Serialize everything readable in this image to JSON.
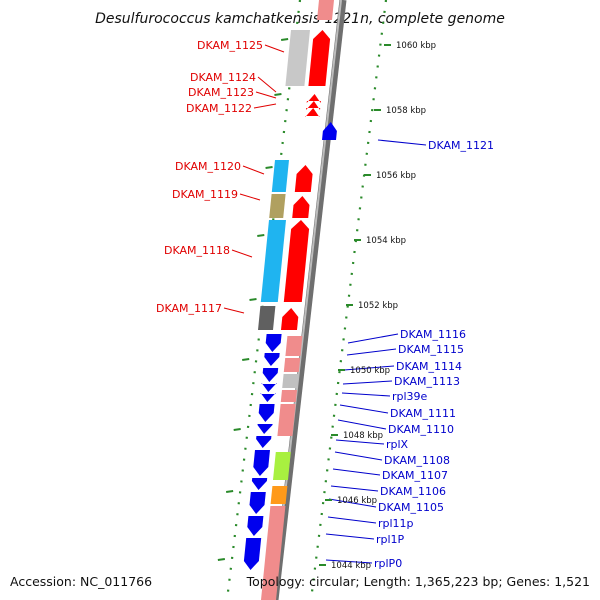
{
  "title": "Desulfurococcus kamchatkensis 1221n, complete genome",
  "footer": {
    "accession": "Accession: NC_011766",
    "summary": "Topology: circular; Length: 1,365,223 bp; Genes: 1,521"
  },
  "colors": {
    "forward_label": "#e00000",
    "reverse_label": "#0000cc",
    "backbone": "#8f8f8f",
    "ticks": "#2a8a2a"
  },
  "scale_ticks": [
    "1060 kbp",
    "1058 kbp",
    "1056 kbp",
    "1054 kbp",
    "1052 kbp",
    "1050 kbp",
    "1048 kbp",
    "1046 kbp",
    "1044 kbp"
  ],
  "forward_labels": [
    "DKAM_1125",
    "DKAM_1124",
    "DKAM_1123",
    "DKAM_1122",
    "DKAM_1120",
    "DKAM_1119",
    "DKAM_1118",
    "DKAM_1117"
  ],
  "reverse_labels": [
    "DKAM_1121",
    "DKAM_1116",
    "DKAM_1115",
    "DKAM_1114",
    "DKAM_1113",
    "rpl39e",
    "DKAM_1111",
    "DKAM_1110",
    "rplX",
    "DKAM_1108",
    "DKAM_1107",
    "DKAM_1106",
    "DKAM_1105",
    "rpl11p",
    "rpl1P",
    "rplP0"
  ]
}
